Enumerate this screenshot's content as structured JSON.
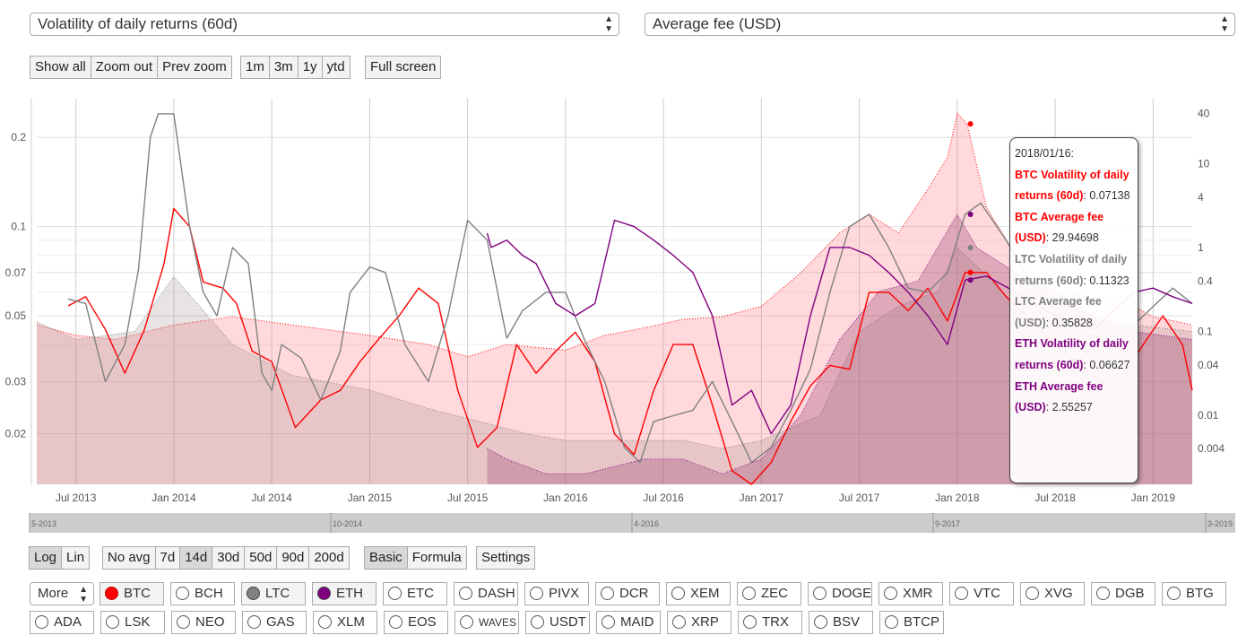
{
  "selectors": {
    "left": "Volatility of daily returns (60d)",
    "right": "Average fee (USD)"
  },
  "zoom_buttons": [
    "Show all",
    "Zoom out",
    "Prev zoom"
  ],
  "range_buttons": [
    "1m",
    "3m",
    "1y",
    "ytd"
  ],
  "fullscreen_button": "Full screen",
  "scale_buttons": [
    "Log",
    "Lin"
  ],
  "active_scale": "Log",
  "avg_buttons": [
    "No avg",
    "7d",
    "14d",
    "30d",
    "50d",
    "90d",
    "200d"
  ],
  "active_avg": "14d",
  "mode_buttons": [
    "Basic",
    "Formula"
  ],
  "active_mode": "Basic",
  "settings_button": "Settings",
  "more_select": "More",
  "coins_row1": [
    "BTC",
    "BCH",
    "LTC",
    "ETH",
    "ETC",
    "DASH",
    "PIVX",
    "DCR",
    "XEM",
    "ZEC",
    "DOGE",
    "XMR",
    "VTC",
    "XVG",
    "DGB",
    "BTG"
  ],
  "coins_row2": [
    "ADA",
    "LSK",
    "NEO",
    "GAS",
    "XLM",
    "EOS",
    "WAVES",
    "USDT",
    "MAID",
    "XRP",
    "TRX",
    "BSV",
    "BTCP"
  ],
  "coin_colors": {
    "BTC": "#ff0000",
    "LTC": "#808080",
    "ETH": "#800080"
  },
  "navigator_labels": [
    "5-2013",
    "10-2014",
    "4-2016",
    "9-2017",
    "3-2019"
  ],
  "tooltip": {
    "date": "2018/01/16:",
    "entries": [
      {
        "label": "BTC Volatility of daily returns (60d)",
        "value": "0.07138",
        "color": "#ff0000"
      },
      {
        "label": "BTC Average fee (USD)",
        "value": "29.94698",
        "color": "#ff0000"
      },
      {
        "label": "LTC Volatility of daily returns (60d)",
        "value": "0.11323",
        "color": "#808080"
      },
      {
        "label": "LTC Average fee (USD)",
        "value": "0.35828",
        "color": "#808080"
      },
      {
        "label": "ETH Volatility of daily returns (60d)",
        "value": "0.06627",
        "color": "#800080"
      },
      {
        "label": "ETH Average fee (USD)",
        "value": "2.55257",
        "color": "#800080"
      }
    ]
  },
  "chart_data": {
    "type": "line",
    "scale": "log",
    "x_ticks": [
      "Jul 2013",
      "Jan 2014",
      "Jul 2014",
      "Jan 2015",
      "Jul 2015",
      "Jan 2016",
      "Jul 2016",
      "Jan 2017",
      "Jul 2017",
      "Jan 2018",
      "Jul 2018",
      "Jan 2019"
    ],
    "x_tick_years": [
      2013.5,
      2014.0,
      2014.5,
      2015.0,
      2015.5,
      2016.0,
      2016.5,
      2017.0,
      2017.5,
      2018.0,
      2018.5,
      2019.0
    ],
    "xlim": [
      2013.3,
      2019.2
    ],
    "y_left_ticks": [
      "0.02",
      "0.03",
      "0.05",
      "0.07",
      "0.1",
      "0.2"
    ],
    "y_left_tick_values": [
      0.02,
      0.03,
      0.05,
      0.07,
      0.1,
      0.2
    ],
    "y_left_lim": [
      0.0135,
      0.27
    ],
    "y_right_ticks": [
      "0.004",
      "0.01",
      "0.04",
      "0.1",
      "0.4",
      "1",
      "4",
      "10",
      "40"
    ],
    "y_right_tick_values": [
      0.004,
      0.01,
      0.04,
      0.1,
      0.4,
      1,
      4,
      10,
      40
    ],
    "y_right_lim": [
      0.0015,
      60
    ],
    "series": [
      {
        "name": "BTC Volatility of daily returns (60d)",
        "axis": "left",
        "color": "#ff0000",
        "style": "line",
        "x": [
          2013.46,
          2013.55,
          2013.65,
          2013.75,
          2013.85,
          2013.95,
          2014.0,
          2014.08,
          2014.15,
          2014.25,
          2014.32,
          2014.4,
          2014.5,
          2014.62,
          2014.75,
          2014.85,
          2014.95,
          2015.05,
          2015.15,
          2015.25,
          2015.35,
          2015.45,
          2015.55,
          2015.65,
          2015.75,
          2015.85,
          2015.95,
          2016.05,
          2016.15,
          2016.25,
          2016.35,
          2016.45,
          2016.55,
          2016.65,
          2016.75,
          2016.85,
          2016.95,
          2017.05,
          2017.15,
          2017.25,
          2017.35,
          2017.45,
          2017.55,
          2017.65,
          2017.75,
          2017.85,
          2017.95,
          2018.04,
          2018.15,
          2018.25,
          2018.35,
          2018.5,
          2018.65,
          2018.8,
          2018.95,
          2019.05,
          2019.15,
          2019.2
        ],
        "y": [
          0.054,
          0.058,
          0.045,
          0.032,
          0.045,
          0.075,
          0.115,
          0.1,
          0.065,
          0.062,
          0.055,
          0.038,
          0.035,
          0.021,
          0.026,
          0.028,
          0.035,
          0.042,
          0.05,
          0.062,
          0.055,
          0.028,
          0.018,
          0.021,
          0.04,
          0.032,
          0.038,
          0.044,
          0.035,
          0.02,
          0.017,
          0.028,
          0.04,
          0.04,
          0.025,
          0.015,
          0.013,
          0.016,
          0.022,
          0.029,
          0.034,
          0.033,
          0.06,
          0.06,
          0.052,
          0.062,
          0.048,
          0.07,
          0.07,
          0.058,
          0.05,
          0.04,
          0.033,
          0.028,
          0.04,
          0.05,
          0.04,
          0.028
        ]
      },
      {
        "name": "LTC Volatility of daily returns (60d)",
        "axis": "left",
        "color": "#808080",
        "style": "line",
        "x": [
          2013.46,
          2013.55,
          2013.65,
          2013.75,
          2013.82,
          2013.88,
          2013.92,
          2014.0,
          2014.08,
          2014.15,
          2014.22,
          2014.3,
          2014.38,
          2014.45,
          2014.5,
          2014.55,
          2014.65,
          2014.75,
          2014.85,
          2014.9,
          2015.0,
          2015.08,
          2015.18,
          2015.3,
          2015.4,
          2015.5,
          2015.6,
          2015.7,
          2015.78,
          2015.9,
          2016.0,
          2016.1,
          2016.2,
          2016.3,
          2016.38,
          2016.45,
          2016.55,
          2016.65,
          2016.75,
          2016.85,
          2016.95,
          2017.05,
          2017.15,
          2017.25,
          2017.35,
          2017.45,
          2017.55,
          2017.65,
          2017.75,
          2017.85,
          2017.95,
          2018.04,
          2018.12,
          2018.25,
          2018.4,
          2018.6,
          2018.8,
          2018.95,
          2019.1,
          2019.2
        ],
        "y": [
          0.057,
          0.055,
          0.03,
          0.04,
          0.072,
          0.2,
          0.24,
          0.24,
          0.1,
          0.06,
          0.05,
          0.085,
          0.075,
          0.032,
          0.028,
          0.04,
          0.036,
          0.026,
          0.038,
          0.06,
          0.073,
          0.07,
          0.04,
          0.03,
          0.05,
          0.105,
          0.09,
          0.042,
          0.052,
          0.06,
          0.06,
          0.041,
          0.03,
          0.018,
          0.016,
          0.022,
          0.023,
          0.024,
          0.03,
          0.022,
          0.016,
          0.018,
          0.024,
          0.033,
          0.06,
          0.1,
          0.11,
          0.085,
          0.062,
          0.06,
          0.07,
          0.11,
          0.12,
          0.09,
          0.06,
          0.045,
          0.04,
          0.05,
          0.062,
          0.055
        ]
      },
      {
        "name": "ETH Volatility of daily returns (60d)",
        "axis": "left",
        "color": "#800080",
        "style": "line",
        "x": [
          2015.6,
          2015.62,
          2015.7,
          2015.78,
          2015.85,
          2015.95,
          2016.05,
          2016.15,
          2016.25,
          2016.35,
          2016.45,
          2016.55,
          2016.65,
          2016.75,
          2016.85,
          2016.95,
          2017.05,
          2017.15,
          2017.25,
          2017.35,
          2017.45,
          2017.55,
          2017.65,
          2017.75,
          2017.85,
          2017.95,
          2018.04,
          2018.15,
          2018.3,
          2018.5,
          2018.7,
          2018.9,
          2019.0,
          2019.1,
          2019.2
        ],
        "y": [
          0.095,
          0.085,
          0.09,
          0.08,
          0.075,
          0.055,
          0.05,
          0.055,
          0.105,
          0.1,
          0.09,
          0.08,
          0.07,
          0.05,
          0.025,
          0.028,
          0.02,
          0.025,
          0.05,
          0.085,
          0.085,
          0.08,
          0.07,
          0.06,
          0.05,
          0.04,
          0.066,
          0.068,
          0.06,
          0.05,
          0.045,
          0.06,
          0.062,
          0.058,
          0.055
        ]
      },
      {
        "name": "BTC Average fee (USD)",
        "axis": "right",
        "color": "#ff0000",
        "style": "area",
        "x": [
          2013.3,
          2013.5,
          2013.7,
          2014.0,
          2014.3,
          2014.6,
          2015.0,
          2015.3,
          2015.5,
          2015.7,
          2016.0,
          2016.2,
          2016.4,
          2016.6,
          2016.8,
          2017.0,
          2017.2,
          2017.4,
          2017.55,
          2017.7,
          2017.85,
          2017.95,
          2018.0,
          2018.05,
          2018.15,
          2018.3,
          2018.5,
          2018.7,
          2018.9,
          2019.0,
          2019.2
        ],
        "y": [
          0.12,
          0.09,
          0.08,
          0.12,
          0.15,
          0.12,
          0.09,
          0.07,
          0.05,
          0.07,
          0.06,
          0.09,
          0.11,
          0.14,
          0.15,
          0.2,
          0.5,
          1.5,
          2.5,
          1.5,
          5,
          12,
          40,
          30,
          3,
          0.8,
          0.3,
          0.25,
          0.2,
          0.15,
          0.12
        ]
      },
      {
        "name": "LTC Average fee (USD)",
        "axis": "right",
        "color": "#808080",
        "style": "area",
        "x": [
          2013.3,
          2013.5,
          2013.8,
          2014.0,
          2014.3,
          2014.6,
          2015.0,
          2015.3,
          2015.6,
          2015.8,
          2016.0,
          2016.3,
          2016.6,
          2016.8,
          2017.0,
          2017.3,
          2017.5,
          2017.7,
          2017.9,
          2018.0,
          2018.1,
          2018.3,
          2018.6,
          2018.9,
          2019.2
        ],
        "y": [
          0.13,
          0.08,
          0.1,
          0.45,
          0.07,
          0.03,
          0.02,
          0.012,
          0.008,
          0.006,
          0.005,
          0.005,
          0.005,
          0.004,
          0.005,
          0.01,
          0.1,
          0.2,
          0.3,
          1.0,
          0.6,
          0.2,
          0.15,
          0.12,
          0.1
        ]
      },
      {
        "name": "ETH Average fee (USD)",
        "axis": "right",
        "color": "#800080",
        "style": "area",
        "x": [
          2015.6,
          2015.7,
          2015.9,
          2016.1,
          2016.4,
          2016.6,
          2016.8,
          2017.0,
          2017.2,
          2017.4,
          2017.6,
          2017.8,
          2018.0,
          2018.1,
          2018.3,
          2018.5,
          2018.7,
          2018.9,
          2019.2
        ],
        "y": [
          0.004,
          0.003,
          0.002,
          0.002,
          0.003,
          0.003,
          0.002,
          0.003,
          0.01,
          0.08,
          0.3,
          0.4,
          2.5,
          1.0,
          0.5,
          0.3,
          0.15,
          0.1,
          0.08
        ]
      }
    ]
  }
}
